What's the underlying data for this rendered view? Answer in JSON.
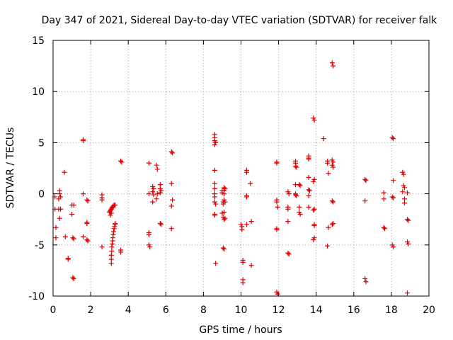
{
  "chart_data": {
    "type": "scatter",
    "title": "Day 347 of 2021, Sidereal Day-to-day VTEC variation (SDTVAR) for receiver falk",
    "xlabel": "GPS time / hours",
    "ylabel": "SDTVAR / TECUs",
    "xlim": [
      0,
      20
    ],
    "ylim": [
      -10,
      15
    ],
    "xticks": [
      "0",
      "2",
      "4",
      "6",
      "8",
      "10",
      "12",
      "14",
      "16",
      "18",
      "20"
    ],
    "yticks": [
      "-10",
      "-5",
      "0",
      "5",
      "10",
      "15"
    ],
    "grid": true,
    "marker": "plus",
    "color": "#dd0000",
    "series": [
      {
        "name": "SDTVAR",
        "points": [
          [
            0.1,
            -0.3
          ],
          [
            0.1,
            -1.5
          ],
          [
            0.15,
            -3.3
          ],
          [
            0.15,
            -4.3
          ],
          [
            0.3,
            -0.5
          ],
          [
            0.3,
            -1.5
          ],
          [
            0.35,
            0.3
          ],
          [
            0.35,
            0.0
          ],
          [
            0.4,
            -0.3
          ],
          [
            0.4,
            -1.5
          ],
          [
            0.35,
            -2.4
          ],
          [
            0.6,
            2.1
          ],
          [
            0.65,
            -4.2
          ],
          [
            0.8,
            -6.3
          ],
          [
            0.8,
            -6.4
          ],
          [
            1.0,
            -1.1
          ],
          [
            1.0,
            -2.0
          ],
          [
            1.05,
            -4.3
          ],
          [
            1.05,
            -8.2
          ],
          [
            1.1,
            -8.3
          ],
          [
            1.1,
            -4.4
          ],
          [
            1.1,
            -1.1
          ],
          [
            1.6,
            5.3
          ],
          [
            1.6,
            5.2
          ],
          [
            1.6,
            0.0
          ],
          [
            1.6,
            -4.2
          ],
          [
            1.8,
            -0.6
          ],
          [
            1.85,
            -0.7
          ],
          [
            1.8,
            -2.8
          ],
          [
            1.8,
            -2.9
          ],
          [
            1.8,
            -4.5
          ],
          [
            1.85,
            -4.6
          ],
          [
            2.6,
            -0.1
          ],
          [
            2.6,
            -0.4
          ],
          [
            2.6,
            -0.6
          ],
          [
            2.6,
            -5.2
          ],
          [
            3.0,
            -1.8
          ],
          [
            3.03,
            -1.7
          ],
          [
            3.06,
            -1.6
          ],
          [
            3.1,
            -1.5
          ],
          [
            3.13,
            -1.4
          ],
          [
            3.16,
            -1.3
          ],
          [
            3.2,
            -1.2
          ],
          [
            3.25,
            -1.1
          ],
          [
            3.3,
            -1.1
          ],
          [
            3.05,
            -2.1
          ],
          [
            3.1,
            -1.9
          ],
          [
            3.1,
            -6.8
          ],
          [
            3.1,
            -6.4
          ],
          [
            3.1,
            -6.0
          ],
          [
            3.12,
            -5.6
          ],
          [
            3.12,
            -5.2
          ],
          [
            3.15,
            -4.9
          ],
          [
            3.17,
            -4.6
          ],
          [
            3.18,
            -4.3
          ],
          [
            3.2,
            -4.0
          ],
          [
            3.22,
            -3.7
          ],
          [
            3.25,
            -3.4
          ],
          [
            3.27,
            -3.2
          ],
          [
            3.3,
            -3.0
          ],
          [
            3.3,
            -2.9
          ],
          [
            3.6,
            3.2
          ],
          [
            3.65,
            3.1
          ],
          [
            3.6,
            -5.5
          ],
          [
            3.6,
            -5.7
          ],
          [
            5.1,
            3.0
          ],
          [
            5.1,
            -3.8
          ],
          [
            5.1,
            -4.0
          ],
          [
            5.1,
            -5.0
          ],
          [
            5.15,
            -5.2
          ],
          [
            5.1,
            0.0
          ],
          [
            5.3,
            0.7
          ],
          [
            5.35,
            0.5
          ],
          [
            5.3,
            0.2
          ],
          [
            5.35,
            -0.1
          ],
          [
            5.3,
            -0.8
          ],
          [
            5.5,
            2.8
          ],
          [
            5.55,
            2.4
          ],
          [
            5.55,
            0.0
          ],
          [
            5.5,
            -0.5
          ],
          [
            5.7,
            0.9
          ],
          [
            5.7,
            0.5
          ],
          [
            5.7,
            0.1
          ],
          [
            5.75,
            0.3
          ],
          [
            5.7,
            -2.9
          ],
          [
            5.75,
            -3.0
          ],
          [
            6.3,
            4.1
          ],
          [
            6.35,
            4.0
          ],
          [
            6.3,
            1.0
          ],
          [
            6.35,
            -0.6
          ],
          [
            6.3,
            -1.2
          ],
          [
            6.3,
            -3.4
          ],
          [
            8.6,
            5.8
          ],
          [
            8.6,
            5.5
          ],
          [
            8.6,
            5.2
          ],
          [
            8.65,
            5.0
          ],
          [
            8.6,
            4.8
          ],
          [
            8.6,
            2.3
          ],
          [
            8.6,
            1.0
          ],
          [
            8.6,
            0.5
          ],
          [
            8.6,
            0.0
          ],
          [
            8.6,
            -0.3
          ],
          [
            8.6,
            -0.8
          ],
          [
            8.65,
            -1.0
          ],
          [
            8.6,
            -2.0
          ],
          [
            8.6,
            -2.1
          ],
          [
            8.65,
            -6.8
          ],
          [
            9.0,
            0.3
          ],
          [
            9.0,
            0.1
          ],
          [
            9.05,
            -0.8
          ],
          [
            9.05,
            -1.0
          ],
          [
            9.0,
            -1.9
          ],
          [
            9.05,
            -2.3
          ],
          [
            9.05,
            -5.3
          ],
          [
            9.1,
            -5.4
          ],
          [
            9.1,
            0.6
          ],
          [
            9.15,
            0.5
          ],
          [
            9.1,
            0.3
          ],
          [
            9.1,
            0.0
          ],
          [
            9.1,
            -0.6
          ],
          [
            9.15,
            -0.8
          ],
          [
            9.1,
            -1.8
          ],
          [
            9.1,
            -2.5
          ],
          [
            9.15,
            -2.4
          ],
          [
            10.0,
            -3.0
          ],
          [
            10.05,
            -3.2
          ],
          [
            10.05,
            -3.5
          ],
          [
            10.1,
            -6.5
          ],
          [
            10.1,
            -6.7
          ],
          [
            10.1,
            -8.4
          ],
          [
            10.1,
            -8.7
          ],
          [
            10.3,
            2.3
          ],
          [
            10.3,
            2.1
          ],
          [
            10.3,
            -0.2
          ],
          [
            10.3,
            -0.3
          ],
          [
            10.3,
            -3.0
          ],
          [
            10.5,
            1.0
          ],
          [
            10.55,
            -2.7
          ],
          [
            10.55,
            -7.0
          ],
          [
            11.9,
            3.0
          ],
          [
            11.9,
            3.1
          ],
          [
            11.9,
            -0.6
          ],
          [
            11.9,
            -0.8
          ],
          [
            11.95,
            -1.3
          ],
          [
            11.9,
            -3.4
          ],
          [
            11.9,
            -3.5
          ],
          [
            11.9,
            -9.6
          ],
          [
            11.95,
            -9.8
          ],
          [
            12.5,
            0.2
          ],
          [
            12.55,
            0.0
          ],
          [
            12.5,
            -1.3
          ],
          [
            12.5,
            -1.5
          ],
          [
            12.5,
            -2.7
          ],
          [
            12.5,
            -5.8
          ],
          [
            12.55,
            -5.9
          ],
          [
            12.9,
            3.2
          ],
          [
            12.9,
            3.0
          ],
          [
            12.9,
            2.7
          ],
          [
            12.95,
            2.6
          ],
          [
            12.9,
            0.9
          ],
          [
            12.9,
            0.0
          ],
          [
            12.9,
            -0.1
          ],
          [
            12.95,
            -0.2
          ],
          [
            13.1,
            0.9
          ],
          [
            13.15,
            0.8
          ],
          [
            13.1,
            -1.3
          ],
          [
            13.1,
            -1.8
          ],
          [
            13.15,
            -2.0
          ],
          [
            13.6,
            3.7
          ],
          [
            13.6,
            3.5
          ],
          [
            13.6,
            3.4
          ],
          [
            13.6,
            1.6
          ],
          [
            13.6,
            0.4
          ],
          [
            13.65,
            0.3
          ],
          [
            13.6,
            -0.2
          ],
          [
            13.6,
            -1.3
          ],
          [
            13.85,
            7.4
          ],
          [
            13.9,
            7.2
          ],
          [
            13.9,
            1.4
          ],
          [
            13.85,
            1.2
          ],
          [
            13.9,
            -1.5
          ],
          [
            13.85,
            -1.6
          ],
          [
            13.9,
            -3.0
          ],
          [
            13.9,
            -3.1
          ],
          [
            13.9,
            -4.3
          ],
          [
            13.85,
            -4.5
          ],
          [
            14.4,
            5.4
          ],
          [
            14.6,
            3.2
          ],
          [
            14.6,
            3.0
          ],
          [
            14.65,
            2.0
          ],
          [
            14.65,
            -3.3
          ],
          [
            14.6,
            -5.1
          ],
          [
            14.85,
            12.8
          ],
          [
            14.9,
            12.5
          ],
          [
            14.85,
            3.3
          ],
          [
            14.9,
            3.1
          ],
          [
            14.85,
            2.8
          ],
          [
            14.9,
            2.6
          ],
          [
            14.85,
            -0.7
          ],
          [
            14.9,
            -0.8
          ],
          [
            14.9,
            -2.9
          ],
          [
            14.85,
            -3.0
          ],
          [
            16.6,
            1.4
          ],
          [
            16.65,
            1.3
          ],
          [
            16.6,
            -0.7
          ],
          [
            16.6,
            -8.3
          ],
          [
            16.65,
            -8.6
          ],
          [
            17.6,
            0.1
          ],
          [
            17.6,
            -0.5
          ],
          [
            17.6,
            -3.3
          ],
          [
            17.65,
            -3.4
          ],
          [
            18.05,
            5.5
          ],
          [
            18.1,
            5.4
          ],
          [
            18.1,
            1.3
          ],
          [
            18.05,
            -0.3
          ],
          [
            18.1,
            -0.4
          ],
          [
            18.05,
            -5.0
          ],
          [
            18.1,
            -5.2
          ],
          [
            18.6,
            2.1
          ],
          [
            18.65,
            1.9
          ],
          [
            18.65,
            0.8
          ],
          [
            18.7,
            0.6
          ],
          [
            18.6,
            0.2
          ],
          [
            18.7,
            -0.5
          ],
          [
            18.7,
            -0.9
          ],
          [
            18.85,
            0.1
          ],
          [
            18.85,
            -2.5
          ],
          [
            18.9,
            -2.6
          ],
          [
            18.85,
            -4.7
          ],
          [
            18.9,
            -4.9
          ],
          [
            18.85,
            -9.7
          ]
        ]
      }
    ]
  }
}
